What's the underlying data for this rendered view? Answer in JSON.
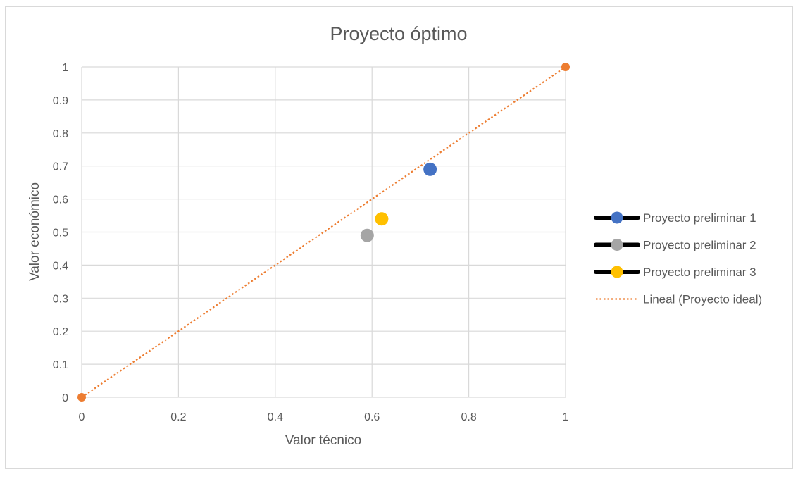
{
  "chart_data": {
    "type": "scatter",
    "title": "Proyecto óptimo",
    "xlabel": "Valor técnico",
    "ylabel": "Valor económico",
    "xlim": [
      0,
      1
    ],
    "ylim": [
      0,
      1
    ],
    "x_ticks": [
      0,
      0.2,
      0.4,
      0.6,
      0.8,
      1
    ],
    "x_tick_labels": [
      "0",
      "0.2",
      "0.4",
      "0.6",
      "0.8",
      "1"
    ],
    "y_ticks": [
      0,
      0.1,
      0.2,
      0.3,
      0.4,
      0.5,
      0.6,
      0.7,
      0.8,
      0.9,
      1
    ],
    "y_tick_labels": [
      "0",
      "0.1",
      "0.2",
      "0.3",
      "0.4",
      "0.5",
      "0.6",
      "0.7",
      "0.8",
      "0.9",
      "1"
    ],
    "grid": true,
    "legend_position": "right",
    "series": [
      {
        "name": "Proyecto preliminar 1",
        "color": "#4472C4",
        "points": [
          [
            0.72,
            0.69
          ]
        ]
      },
      {
        "name": "Proyecto preliminar 2",
        "color": "#A5A5A5",
        "points": [
          [
            0.59,
            0.49
          ]
        ]
      },
      {
        "name": "Proyecto preliminar 3",
        "color": "#FFC000",
        "points": [
          [
            0.62,
            0.54
          ]
        ]
      },
      {
        "name": "Proyecto ideal",
        "color": "#ED7D31",
        "points": [
          [
            0,
            0
          ],
          [
            1,
            1
          ]
        ]
      }
    ],
    "trendline": {
      "legend_label": "Lineal (Proyecto ideal)",
      "series": "Proyecto ideal",
      "color": "#ED7D31",
      "style": "dotted",
      "from": [
        0,
        0
      ],
      "to": [
        1,
        1
      ]
    }
  }
}
